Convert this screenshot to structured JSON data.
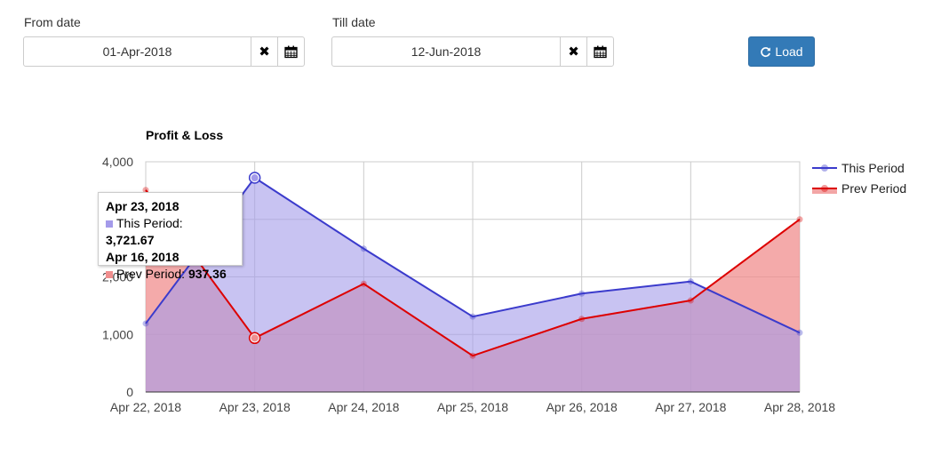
{
  "filters": {
    "from_label": "From date",
    "from_value": "01-Apr-2018",
    "till_label": "Till date",
    "till_value": "12-Jun-2018",
    "load_label": "Load"
  },
  "chart_data": {
    "type": "area",
    "title": "Profit & Loss",
    "categories": [
      "Apr 22, 2018",
      "Apr 23, 2018",
      "Apr 24, 2018",
      "Apr 25, 2018",
      "Apr 26, 2018",
      "Apr 27, 2018",
      "Apr 28, 2018"
    ],
    "ylim": [
      0,
      4000
    ],
    "yticks": [
      "0",
      "1,000",
      "2,000",
      "3,000",
      "4,000"
    ],
    "ytick_values": [
      0,
      1000,
      2000,
      3000,
      4000
    ],
    "grid": true,
    "legend_position": "right",
    "series": [
      {
        "name": "This Period",
        "color": "#3b3bcc",
        "fill": "#a49bea",
        "values": [
          1190,
          3721.67,
          2490,
          1310,
          1710,
          1920,
          1030
        ]
      },
      {
        "name": "Prev Period",
        "color": "#dd0000",
        "fill": "#f08e8e",
        "values": [
          3510,
          937.36,
          1880,
          630,
          1270,
          1590,
          3000
        ]
      }
    ]
  },
  "tooltip": {
    "date1": "Apr 23, 2018",
    "series1": "This Period:",
    "value1": "3,721.67",
    "date2": "Apr 16, 2018",
    "series2": "Prev Period:",
    "value2": "937.36"
  }
}
